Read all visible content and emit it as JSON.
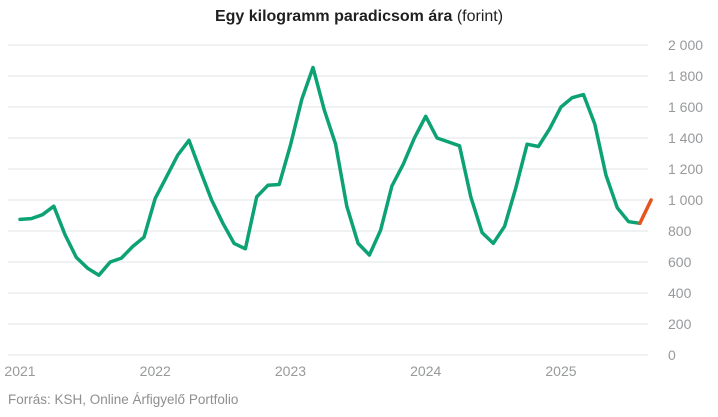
{
  "header": {
    "title_bold": "Egy kilogramm paradicsom ára",
    "title_suffix": " (forint)"
  },
  "footer": {
    "source": "Forrás: KSH, Online Árfigyelő Portfolio"
  },
  "colors": {
    "line_green": "#0da274",
    "line_orange": "#e8541e",
    "grid": "#e0e3e6",
    "tick_label": "#97999b",
    "title": "#1f1f1f",
    "source": "#8d8f91",
    "background": "#ffffff"
  },
  "chart_data": {
    "type": "line",
    "title": "Egy kilogramm paradicsom ára (forint)",
    "x_unit": "month",
    "x_tick_labels": [
      "2021",
      "2022",
      "2023",
      "2024",
      "2025"
    ],
    "x_tick_month_index": [
      0,
      12,
      24,
      36,
      48
    ],
    "ylim": [
      0,
      2000
    ],
    "y_ticks": [
      0,
      200,
      400,
      600,
      800,
      1000,
      1200,
      1400,
      1600,
      1800,
      2000
    ],
    "y_tick_labels": [
      "0",
      "200",
      "400",
      "600",
      "800",
      "1 000",
      "1 200",
      "1 400",
      "1 600",
      "1 800",
      "2 000"
    ],
    "grid": "horizontal",
    "y_axis_position": "right",
    "legend": "none",
    "series": [
      {
        "name": "havi-atlagar",
        "color_key": "line_green",
        "months": [
          "2021-01",
          "2021-02",
          "2021-03",
          "2021-04",
          "2021-05",
          "2021-06",
          "2021-07",
          "2021-08",
          "2021-09",
          "2021-10",
          "2021-11",
          "2021-12",
          "2022-01",
          "2022-02",
          "2022-03",
          "2022-04",
          "2022-05",
          "2022-06",
          "2022-07",
          "2022-08",
          "2022-09",
          "2022-10",
          "2022-11",
          "2022-12",
          "2023-01",
          "2023-02",
          "2023-03",
          "2023-04",
          "2023-05",
          "2023-06",
          "2023-07",
          "2023-08",
          "2023-09",
          "2023-10",
          "2023-11",
          "2023-12",
          "2024-01",
          "2024-02",
          "2024-03",
          "2024-04",
          "2024-05",
          "2024-06",
          "2024-07",
          "2024-08",
          "2024-09",
          "2024-10",
          "2024-11",
          "2024-12",
          "2025-01",
          "2025-02",
          "2025-03",
          "2025-04",
          "2025-05",
          "2025-06",
          "2025-07",
          "2025-08"
        ],
        "values": [
          875,
          880,
          905,
          960,
          775,
          630,
          560,
          515,
          600,
          625,
          700,
          760,
          1010,
          1150,
          1290,
          1385,
          1190,
          1000,
          850,
          720,
          685,
          1020,
          1095,
          1100,
          1355,
          1650,
          1855,
          1580,
          1360,
          960,
          720,
          645,
          805,
          1090,
          1230,
          1400,
          1540,
          1400,
          1375,
          1350,
          1020,
          790,
          720,
          830,
          1080,
          1360,
          1345,
          1460,
          1600,
          1660,
          1680,
          1490,
          1160,
          950,
          860,
          850
        ]
      },
      {
        "name": "legfrissebb-ar",
        "color_key": "line_orange",
        "months": [
          "2025-08",
          "2025-09"
        ],
        "values": [
          850,
          1000
        ]
      }
    ]
  }
}
